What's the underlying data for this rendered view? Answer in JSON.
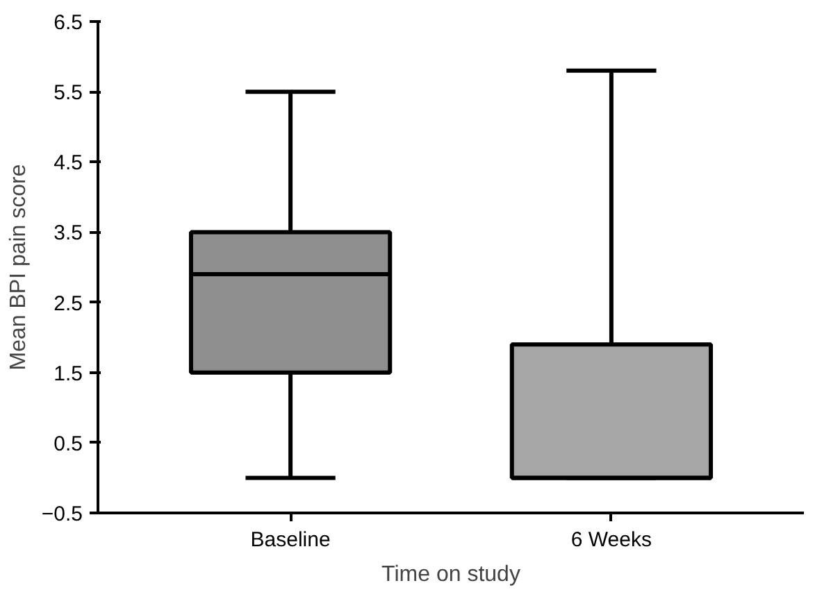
{
  "chart_data": {
    "type": "box",
    "xlabel": "Time on study",
    "ylabel": "Mean BPI pain score",
    "categories": [
      "Baseline",
      "6 Weeks"
    ],
    "boxes": [
      {
        "low": 0,
        "q1": 1.5,
        "median": 2.9,
        "q3": 3.5,
        "high": 5.5
      },
      {
        "low": 0,
        "q1": 0,
        "median": 0,
        "q3": 1.9,
        "high": 5.8
      }
    ],
    "colors": [
      "#8f8f8f",
      "#a6a6a6"
    ],
    "ylim": [
      -0.5,
      6.5
    ],
    "yticks": [
      -0.5,
      0.5,
      1.5,
      2.5,
      3.5,
      4.5,
      5.5,
      6.5
    ],
    "grid": false
  }
}
